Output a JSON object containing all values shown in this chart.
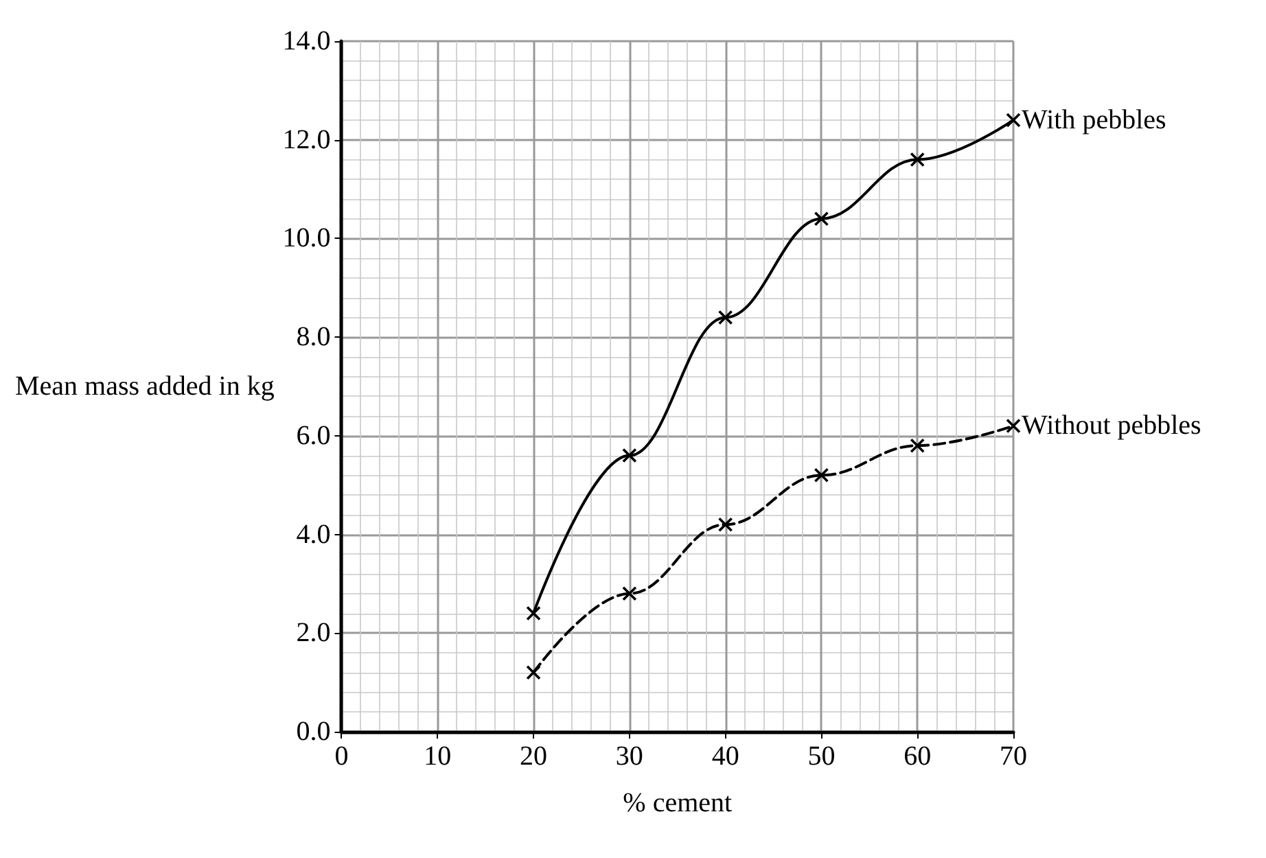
{
  "chart_data": {
    "type": "line",
    "xlabel": "% cement",
    "ylabel": "Mean mass added in kg",
    "x": [
      20,
      30,
      40,
      50,
      60,
      70
    ],
    "series": [
      {
        "name": "With pebbles",
        "color": "#000000",
        "line_style": "solid",
        "values": [
          2.4,
          5.6,
          8.4,
          10.4,
          11.6,
          12.4
        ]
      },
      {
        "name": "Without pebbles",
        "color": "#000000",
        "line_style": "dashed",
        "values": [
          1.2,
          2.8,
          4.2,
          5.2,
          5.8,
          6.2
        ]
      }
    ],
    "xlim": [
      0,
      70
    ],
    "xticks": [
      0,
      10,
      20,
      30,
      40,
      50,
      60,
      70
    ],
    "ylim": [
      0,
      14
    ],
    "yticks": [
      {
        "value": 0,
        "label": "0.0"
      },
      {
        "value": 2,
        "label": "2.0"
      },
      {
        "value": 4,
        "label": "4.0"
      },
      {
        "value": 6,
        "label": "6.0"
      },
      {
        "value": 8,
        "label": "8.0"
      },
      {
        "value": 10,
        "label": "10.0"
      },
      {
        "value": 12,
        "label": "12.0"
      },
      {
        "value": 14,
        "label": "14.0"
      }
    ],
    "grid": true,
    "legend": false,
    "marker": "cross"
  }
}
